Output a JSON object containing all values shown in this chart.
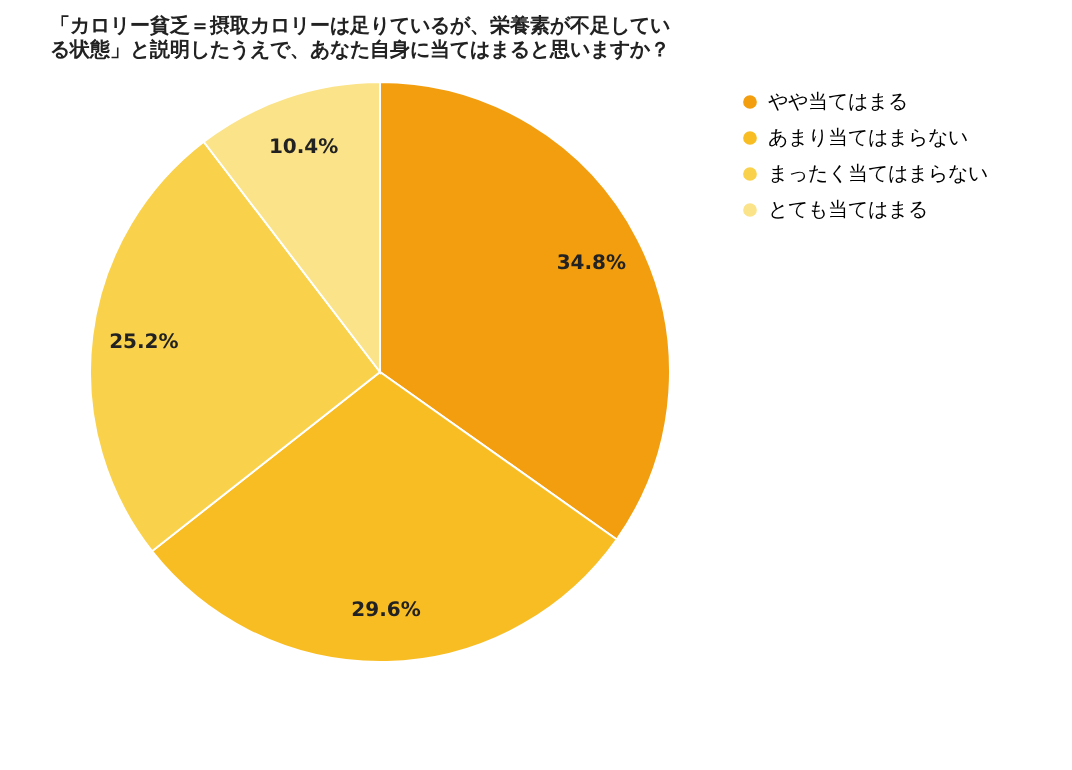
{
  "chart_data": {
    "type": "pie",
    "title": "「カロリー貧乏＝摂取カロリーは足りているが、栄養素が不足している状態」と説明したうえで、あなた自身に当てはまると思いますか？",
    "categories": [
      "やや当てはまる",
      "あまり当てはまらない",
      "まったく当てはまらない",
      "とても当てはまる"
    ],
    "values": [
      34.8,
      29.6,
      25.2,
      10.4
    ],
    "colors": [
      "#f29e0f",
      "#f9bd24",
      "#f9d14a",
      "#fbe38a"
    ],
    "value_labels": [
      "34.8%",
      "29.6%",
      "25.2%",
      "10.4%"
    ],
    "legend": "top right"
  }
}
